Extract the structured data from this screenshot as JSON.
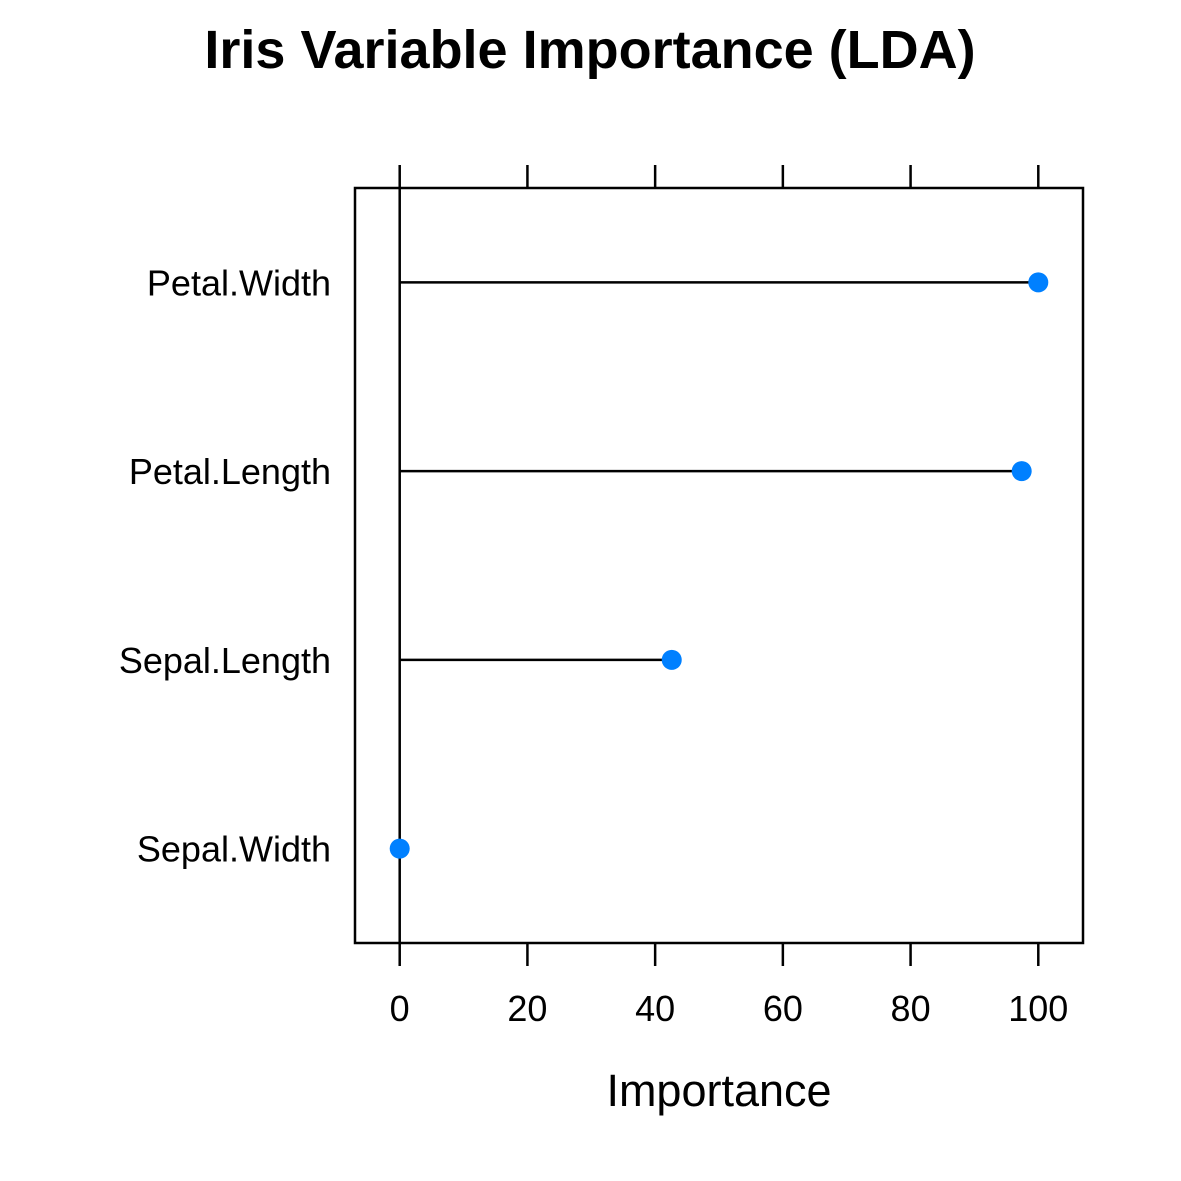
{
  "chart_data": {
    "type": "dot",
    "title": "Iris Variable Importance (LDA)",
    "xlabel": "Importance",
    "ylabel": "",
    "xlim": [
      -7,
      107
    ],
    "x_ticks": [
      0,
      20,
      40,
      60,
      80,
      100
    ],
    "x_tick_labels": [
      "0",
      "20",
      "40",
      "60",
      "80",
      "100"
    ],
    "categories": [
      "Petal.Width",
      "Petal.Length",
      "Sepal.Length",
      "Sepal.Width"
    ],
    "values": [
      100,
      97.4,
      42.6,
      0
    ],
    "grid": false,
    "legend": "none",
    "point_color": "#0080ff",
    "line_color": "#000000"
  }
}
